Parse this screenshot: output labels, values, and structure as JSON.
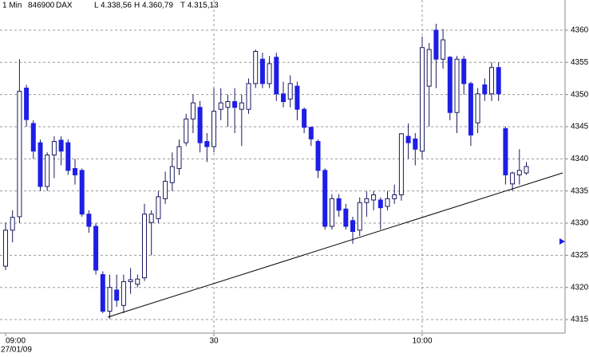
{
  "chart_data": {
    "type": "candlestick",
    "header": [
      "1 Min",
      "846900",
      "DAX",
      "L 4.338,56",
      "H 4.360,79",
      "T 4.315,13"
    ],
    "date": "27/01/09",
    "categories": [
      "09:00",
      null,
      null,
      null,
      null,
      null,
      null,
      null,
      null,
      null,
      null,
      null,
      null,
      null,
      null,
      null,
      null,
      null,
      null,
      null,
      null,
      null,
      null,
      null,
      null,
      null,
      null,
      null,
      null,
      null,
      "30",
      null,
      null,
      null,
      null,
      null,
      null,
      null,
      null,
      null,
      null,
      null,
      null,
      null,
      null,
      null,
      null,
      null,
      null,
      null,
      null,
      null,
      null,
      null,
      null,
      null,
      null,
      null,
      null,
      null,
      "10:00",
      null,
      null,
      null,
      null,
      null,
      null,
      null,
      null,
      null,
      null,
      null,
      null,
      null,
      null,
      null
    ],
    "open": [
      4323.3,
      4328.9,
      4331,
      4351,
      4345.5,
      4342.5,
      4335.7,
      4340.6,
      4342.9,
      4342.5,
      4338.5,
      4338.2,
      4331.4,
      4329.5,
      4322,
      4316.3,
      4319.6,
      4317.2,
      4320.9,
      4320.5,
      4321.5,
      4330.1,
      4330.7,
      4333.8,
      4336.3,
      4338.5,
      4342.5,
      4346.2,
      4348,
      4342.7,
      4341.9,
      4347.7,
      4348,
      4348.9,
      4347.7,
      4347.7,
      4351.7,
      4355.5,
      4351.7,
      4355.8,
      4350.1,
      4349.3,
      4351.3,
      4347.7,
      4344.9,
      4342.7,
      4338.2,
      4329.5,
      4333.8,
      4332.2,
      4330.4,
      4328.9,
      4333.2,
      4333.6,
      4333.6,
      4332.6,
      4333.8,
      4334.4,
      4343.5,
      4343.1,
      4341.2,
      4351.3,
      4360,
      4355.5,
      4355.8,
      4347.2,
      4355.5,
      4351.7,
      4345.6,
      4351.5,
      4350.1,
      4354.2,
      4344.7,
      4336.1,
      4337.5,
      4337.8
    ],
    "high": [
      4330.1,
      4332,
      4355.5,
      4351.5,
      4346,
      4343,
      4341,
      4343.5,
      4343.5,
      4343,
      4340,
      4338.5,
      4332,
      4330,
      4322.5,
      4322,
      4322,
      4322,
      4323,
      4322,
      4333,
      4332,
      4335,
      4338,
      4341,
      4343,
      4347,
      4350,
      4349,
      4344,
      4351,
      4351,
      4350,
      4351,
      4350,
      4352.5,
      4357,
      4356.5,
      4356,
      4356.5,
      4352,
      4353,
      4352,
      4348,
      4345,
      4343,
      4338.5,
      4334.5,
      4334.5,
      4333,
      4331,
      4334,
      4335,
      4335,
      4334,
      4335,
      4336,
      4344,
      4345.5,
      4344,
      4359,
      4358,
      4361,
      4360.2,
      4356,
      4356,
      4356,
      4352,
      4351,
      4352.5,
      4355,
      4355,
      4345,
      4338,
      4341.5,
      4339.5
    ],
    "low": [
      4322.7,
      4327,
      4330,
      4345,
      4340,
      4335,
      4335,
      4337,
      4339,
      4337.5,
      4336,
      4331,
      4328.5,
      4322,
      4316,
      4315.1,
      4317,
      4316,
      4319,
      4320,
      4321,
      4325,
      4330,
      4333,
      4335,
      4337.5,
      4342,
      4344,
      4341,
      4339.5,
      4341,
      4346,
      4345,
      4344,
      4342,
      4347,
      4351,
      4351,
      4351,
      4349,
      4348,
      4348,
      4346,
      4344,
      4342,
      4337,
      4329,
      4329,
      4331,
      4329,
      4326.8,
      4328,
      4331,
      4332,
      4329,
      4332,
      4333,
      4333.5,
      4340,
      4339,
      4340,
      4345,
      4351,
      4354,
      4346,
      4344,
      4350,
      4342,
      4344,
      4349,
      4349,
      4349,
      4336,
      4335,
      4336,
      4337.5
    ],
    "close": [
      4328.9,
      4330.9,
      4350.5,
      4346.1,
      4341.2,
      4335.7,
      4340.6,
      4342.7,
      4341.2,
      4338.2,
      4337.5,
      4331.4,
      4329.5,
      4322.7,
      4316.3,
      4320,
      4318,
      4320.9,
      4321.2,
      4321.3,
      4331.4,
      4331.4,
      4334.1,
      4336.5,
      4338.8,
      4341.9,
      4346.2,
      4348.7,
      4342.5,
      4341.9,
      4347.4,
      4348.7,
      4348.9,
      4348,
      4348.7,
      4351.7,
      4356.7,
      4351.7,
      4354.8,
      4350.1,
      4348.9,
      4351.7,
      4347.7,
      4344.9,
      4343.1,
      4338.2,
      4329.5,
      4333.8,
      4332,
      4329.5,
      4328.7,
      4333.2,
      4333.8,
      4334.4,
      4332.4,
      4333.8,
      4334.4,
      4343.9,
      4342.5,
      4341.5,
      4357.3,
      4357,
      4355.5,
      4358.5,
      4347.2,
      4355.5,
      4351.7,
      4343.7,
      4350.1,
      4350.1,
      4354.2,
      4350.1,
      4337.5,
      4337.8,
      4338.2,
      4338.8
    ],
    "color": "#1e1ee6",
    "ylim": [
      4312.9,
      4364.7
    ],
    "yticks": [
      4315,
      4320,
      4325,
      4330,
      4335,
      4340,
      4345,
      4350,
      4355,
      4360
    ],
    "grid": true
  }
}
